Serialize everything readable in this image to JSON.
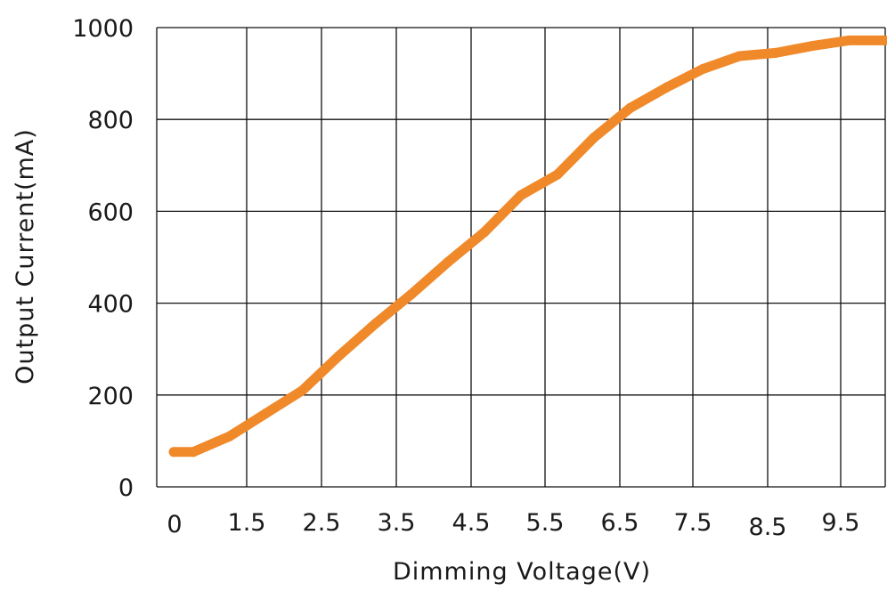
{
  "chart_data": {
    "type": "line",
    "title": "",
    "xlabel": "Dimming Voltage(V)",
    "ylabel": "Output Current(mA)",
    "xlim": [
      0,
      10
    ],
    "ylim": [
      0,
      1000
    ],
    "grid": true,
    "legend": "none",
    "x_tick_labels": [
      "0",
      "1.5",
      "2.5",
      "3.5",
      "4.5",
      "5.5",
      "6.5",
      "7.5",
      "8.5",
      "9.5"
    ],
    "y_tick_labels": [
      "0",
      "200",
      "400",
      "600",
      "800",
      "1000"
    ],
    "y_ticks": [
      0,
      200,
      400,
      600,
      800,
      1000
    ],
    "series": [
      {
        "color": "#f0892a",
        "x": [
          0,
          0.5,
          1,
          1.5,
          2,
          2.5,
          3,
          3.5,
          4,
          4.5,
          5,
          5.5,
          6,
          6.5,
          7,
          7.5,
          8,
          8.5,
          9,
          9.5,
          10
        ],
        "y": [
          76,
          76,
          110,
          160,
          210,
          285,
          355,
          420,
          490,
          555,
          635,
          680,
          760,
          825,
          870,
          910,
          938,
          945,
          960,
          972,
          972
        ]
      }
    ]
  }
}
